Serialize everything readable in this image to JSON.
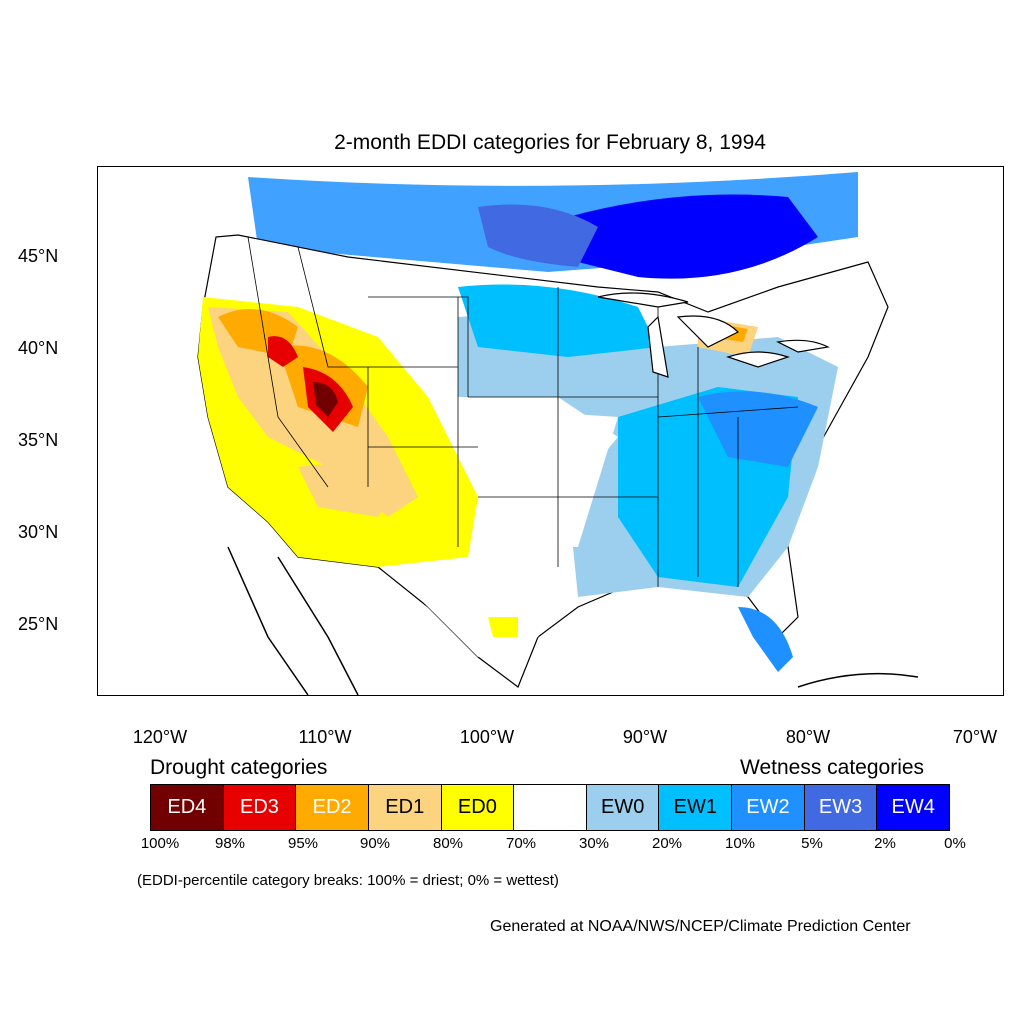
{
  "title": "2-month EDDI categories for February 8, 1994",
  "lat_labels": [
    "45°N",
    "40°N",
    "35°N",
    "30°N",
    "25°N"
  ],
  "lon_labels": [
    "120°W",
    "110°W",
    "100°W",
    "90°W",
    "80°W",
    "70°W"
  ],
  "legend": {
    "drought_heading": "Drought categories",
    "wetness_heading": "Wetness categories",
    "categories": [
      {
        "label": "ED4",
        "color": "#730000",
        "text_color": "#ffffff"
      },
      {
        "label": "ED3",
        "color": "#e60000",
        "text_color": "#ffffff"
      },
      {
        "label": "ED2",
        "color": "#ffaa00",
        "text_color": "#ffffff"
      },
      {
        "label": "ED1",
        "color": "#fcd37f",
        "text_color": "#000000"
      },
      {
        "label": "ED0",
        "color": "#ffff00",
        "text_color": "#000000"
      },
      {
        "label": "",
        "color": "#ffffff",
        "text_color": "#000000"
      },
      {
        "label": "EW0",
        "color": "#9ccfee",
        "text_color": "#000000"
      },
      {
        "label": "EW1",
        "color": "#00bfff",
        "text_color": "#000000"
      },
      {
        "label": "EW2",
        "color": "#1e90ff",
        "text_color": "#ffffff"
      },
      {
        "label": "EW3",
        "color": "#4169e1",
        "text_color": "#ffffff"
      },
      {
        "label": "EW4",
        "color": "#0000ff",
        "text_color": "#ffffff"
      }
    ],
    "breaks": [
      "100%",
      "98%",
      "95%",
      "90%",
      "80%",
      "70%",
      "30%",
      "20%",
      "10%",
      "5%",
      "2%",
      "0%"
    ],
    "note": "(EDDI-percentile category breaks: 100% = driest; 0% = wettest)"
  },
  "credit": "Generated at NOAA/NWS/NCEP/Climate Prediction Center"
}
